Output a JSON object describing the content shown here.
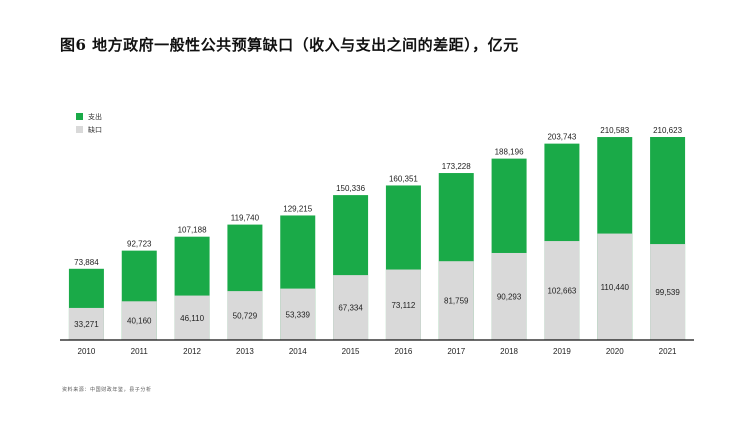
{
  "title": "图6 地方政府一般性公共预算缺口（收入与支出之间的差距），亿元",
  "source": "资料来源：中国财政年鉴，县子分析",
  "colors": {
    "expenditure": "#1aaa48",
    "gap": "#d9d9d9",
    "axis": "#111111"
  },
  "chart_data": {
    "type": "bar",
    "stacked": "overlay",
    "categories": [
      "2010",
      "2011",
      "2012",
      "2013",
      "2014",
      "2015",
      "2016",
      "2017",
      "2018",
      "2019",
      "2020",
      "2021"
    ],
    "series": [
      {
        "name": "支出",
        "values": [
          73884,
          92723,
          107188,
          119740,
          129215,
          150336,
          160351,
          173228,
          188196,
          203743,
          210583,
          210623
        ]
      },
      {
        "name": "缺口",
        "values": [
          33271,
          40160,
          46110,
          50729,
          53339,
          67334,
          73112,
          81759,
          90293,
          102663,
          110440,
          99539
        ]
      }
    ],
    "value_labels": {
      "expenditure": [
        "73,884",
        "92,723",
        "107,188",
        "119,740",
        "129,215",
        "150,336",
        "160,351",
        "173,228",
        "188,196",
        "203,743",
        "210,583",
        "210,623"
      ],
      "gap": [
        "33,271",
        "40,160",
        "46,110",
        "50,729",
        "53,339",
        "67,334",
        "73,112",
        "81,759",
        "90,293",
        "102,663",
        "110,440",
        "99,539"
      ]
    },
    "ylim": [
      0,
      210623
    ],
    "legend_position": "top-left",
    "grid": false
  }
}
